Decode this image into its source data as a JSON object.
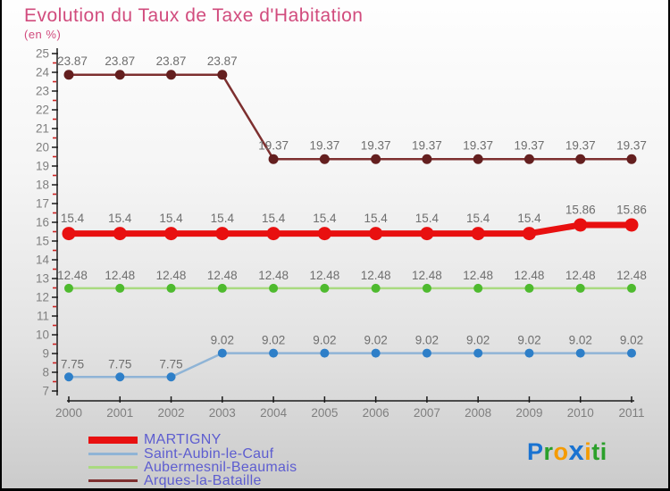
{
  "title": "Evolution du Taux de Taxe d'Habitation",
  "subtitle": "(en %)",
  "theme": {
    "title_color": "#d14b7d",
    "point_label_color": "#6e6e6e",
    "tick_label_color": "#7f7f7f",
    "axis_color": "#1a1a1a",
    "minor_tick_color": "#cc2222",
    "legend_text_color": "#5d5dd0",
    "background_top": "#fefefe",
    "background_bottom": "#cbcbcb"
  },
  "chart_data": {
    "type": "line",
    "title": "Evolution du Taux de Taxe d'Habitation",
    "subtitle": "(en %)",
    "x": [
      2000,
      2001,
      2002,
      2003,
      2004,
      2005,
      2006,
      2007,
      2008,
      2009,
      2010,
      2011
    ],
    "ylim": [
      7,
      25
    ],
    "y_major_step": 1,
    "y_minor_step": 0.5,
    "grid": false,
    "point_labels": true,
    "legend_position": "bottom-left",
    "series": [
      {
        "name": "MARTIGNY",
        "values": [
          15.4,
          15.4,
          15.4,
          15.4,
          15.4,
          15.4,
          15.4,
          15.4,
          15.4,
          15.4,
          15.86,
          15.86
        ],
        "line_color": "#e81010",
        "marker_color": "#e81010",
        "line_width": 7,
        "marker_radius": 7.5
      },
      {
        "name": "Saint-Aubin-le-Cauf",
        "values": [
          7.75,
          7.75,
          7.75,
          9.02,
          9.02,
          9.02,
          9.02,
          9.02,
          9.02,
          9.02,
          9.02,
          9.02
        ],
        "line_color": "#8fb4d6",
        "marker_color": "#2e7fc8",
        "line_width": 2.5,
        "marker_radius": 5
      },
      {
        "name": "Aubermesnil-Beaumais",
        "values": [
          12.48,
          12.48,
          12.48,
          12.48,
          12.48,
          12.48,
          12.48,
          12.48,
          12.48,
          12.48,
          12.48,
          12.48
        ],
        "line_color": "#a9da80",
        "marker_color": "#4eba2e",
        "line_width": 2.5,
        "marker_radius": 5
      },
      {
        "name": "Arques-la-Bataille",
        "values": [
          23.87,
          23.87,
          23.87,
          23.87,
          19.37,
          19.37,
          19.37,
          19.37,
          19.37,
          19.37,
          19.37,
          19.37
        ],
        "line_color": "#7d2f2f",
        "marker_color": "#641f1f",
        "line_width": 2.5,
        "marker_radius": 5.5
      }
    ]
  },
  "legend": {
    "items": [
      {
        "label": "MARTIGNY",
        "swatch_color": "#e81010",
        "swatch_height": 8
      },
      {
        "label": "Saint-Aubin-le-Cauf",
        "swatch_color": "#8fb4d6",
        "swatch_height": 3
      },
      {
        "label": "Aubermesnil-Beaumais",
        "swatch_color": "#a9da80",
        "swatch_height": 3
      },
      {
        "label": "Arques-la-Bataille",
        "swatch_color": "#7d2f2f",
        "swatch_height": 3
      }
    ]
  },
  "logo": {
    "text": "Proxiti",
    "letters": [
      {
        "ch": "P",
        "color": "#1a73d1",
        "big": false
      },
      {
        "ch": "r",
        "color": "#2ba02b",
        "big": false
      },
      {
        "ch": "o",
        "color": "#f59b00",
        "big": false
      },
      {
        "ch": "x",
        "color": "#1a73d1",
        "big": true
      },
      {
        "ch": "i",
        "color": "#f59b00",
        "big": false
      },
      {
        "ch": "t",
        "color": "#2ba02b",
        "big": false
      },
      {
        "ch": "i",
        "color": "#2ba02b",
        "big": false
      }
    ]
  }
}
